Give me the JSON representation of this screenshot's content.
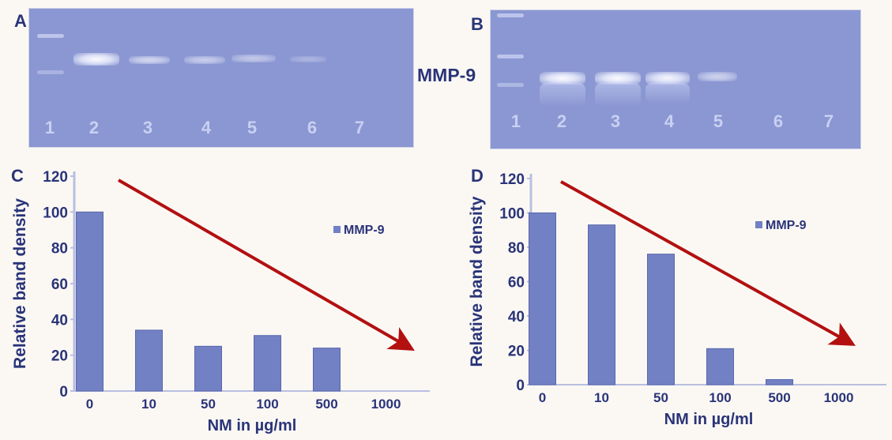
{
  "panels": {
    "a": {
      "letter": "A",
      "lanes": [
        "1",
        "2",
        "3",
        "4",
        "5",
        "6",
        "7"
      ]
    },
    "b": {
      "letter": "B",
      "lanes": [
        "1",
        "2",
        "3",
        "4",
        "5",
        "6",
        "7"
      ],
      "band_label": "MMP-9"
    },
    "c": {
      "letter": "C"
    },
    "d": {
      "letter": "D"
    }
  },
  "chart_data": [
    {
      "type": "bar",
      "panel": "C",
      "categories": [
        "0",
        "10",
        "50",
        "100",
        "500",
        "1000"
      ],
      "series": [
        {
          "name": "MMP-9",
          "values": [
            100,
            34,
            25,
            31,
            24,
            0
          ]
        }
      ],
      "xlabel": "NM in µg/ml",
      "ylabel": "Relative band density",
      "ylim": [
        0,
        120
      ],
      "yticks": [
        "0",
        "20",
        "40",
        "60",
        "80",
        "100",
        "120"
      ],
      "legend_position": "right",
      "grid": false,
      "annotation": "red arrow indicating decreasing trend",
      "colors": {
        "bar": "#7280c4",
        "bar_edge": "#5a67ad",
        "arrow": "#b31010",
        "text": "#2a3478"
      }
    },
    {
      "type": "bar",
      "panel": "D",
      "categories": [
        "0",
        "10",
        "50",
        "100",
        "500",
        "1000"
      ],
      "series": [
        {
          "name": "MMP-9",
          "values": [
            100,
            93,
            76,
            21,
            3,
            0
          ]
        }
      ],
      "xlabel": "NM in µg/ml",
      "ylabel": "Relative band density",
      "ylim": [
        0,
        120
      ],
      "yticks": [
        "0",
        "20",
        "40",
        "60",
        "80",
        "100",
        "120"
      ],
      "legend_position": "right",
      "grid": false,
      "annotation": "red arrow indicating decreasing trend",
      "colors": {
        "bar": "#7280c4",
        "bar_edge": "#5a67ad",
        "arrow": "#b31010",
        "text": "#2a3478"
      }
    }
  ]
}
